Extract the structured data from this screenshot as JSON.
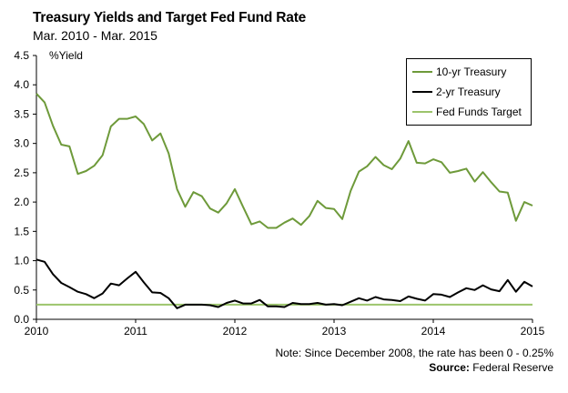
{
  "chart_data": {
    "type": "line",
    "title": "Treasury Yields and Target Fed Fund Rate",
    "subtitle": "Mar. 2010 - Mar. 2015",
    "ylabel": "%Yield",
    "xlabel": "",
    "ylim": [
      0,
      4.5
    ],
    "xlim": [
      2010,
      2015
    ],
    "yticks": [
      "0.0",
      "0.5",
      "1.0",
      "1.5",
      "2.0",
      "2.5",
      "3.0",
      "3.5",
      "4.0",
      "4.5"
    ],
    "xticks": [
      "2010",
      "2011",
      "2012",
      "2013",
      "2014",
      "2015"
    ],
    "legend_position": "top-right",
    "x": [
      2010.0,
      2010.083,
      2010.167,
      2010.25,
      2010.333,
      2010.417,
      2010.5,
      2010.583,
      2010.667,
      2010.75,
      2010.833,
      2010.917,
      2011.0,
      2011.083,
      2011.167,
      2011.25,
      2011.333,
      2011.417,
      2011.5,
      2011.583,
      2011.667,
      2011.75,
      2011.833,
      2011.917,
      2012.0,
      2012.083,
      2012.167,
      2012.25,
      2012.333,
      2012.417,
      2012.5,
      2012.583,
      2012.667,
      2012.75,
      2012.833,
      2012.917,
      2013.0,
      2013.083,
      2013.167,
      2013.25,
      2013.333,
      2013.417,
      2013.5,
      2013.583,
      2013.667,
      2013.75,
      2013.833,
      2013.917,
      2014.0,
      2014.083,
      2014.167,
      2014.25,
      2014.333,
      2014.417,
      2014.5,
      2014.583,
      2014.667,
      2014.75,
      2014.833,
      2014.917,
      2015.0
    ],
    "series": [
      {
        "name": "10-yr Treasury",
        "color": "#6e9a3a",
        "values": [
          3.85,
          3.7,
          3.3,
          2.98,
          2.95,
          2.48,
          2.53,
          2.62,
          2.8,
          3.29,
          3.42,
          3.42,
          3.46,
          3.33,
          3.05,
          3.17,
          2.83,
          2.22,
          1.92,
          2.17,
          2.1,
          1.89,
          1.82,
          1.98,
          2.22,
          1.92,
          1.62,
          1.67,
          1.56,
          1.56,
          1.65,
          1.72,
          1.61,
          1.76,
          2.02,
          1.9,
          1.88,
          1.71,
          2.19,
          2.52,
          2.61,
          2.77,
          2.63,
          2.56,
          2.74,
          3.04,
          2.67,
          2.66,
          2.73,
          2.68,
          2.5,
          2.53,
          2.57,
          2.35,
          2.51,
          2.34,
          2.18,
          2.16,
          1.68,
          2.0,
          1.94
        ]
      },
      {
        "name": "2-yr Treasury",
        "color": "#000000",
        "values": [
          1.02,
          0.98,
          0.77,
          0.62,
          0.55,
          0.47,
          0.43,
          0.36,
          0.44,
          0.61,
          0.58,
          0.7,
          0.81,
          0.63,
          0.46,
          0.45,
          0.36,
          0.19,
          0.25,
          0.25,
          0.25,
          0.24,
          0.21,
          0.28,
          0.32,
          0.27,
          0.27,
          0.33,
          0.22,
          0.22,
          0.21,
          0.28,
          0.26,
          0.26,
          0.28,
          0.25,
          0.26,
          0.24,
          0.3,
          0.36,
          0.32,
          0.38,
          0.34,
          0.33,
          0.31,
          0.39,
          0.35,
          0.32,
          0.43,
          0.42,
          0.38,
          0.46,
          0.53,
          0.5,
          0.58,
          0.51,
          0.48,
          0.67,
          0.47,
          0.64,
          0.56
        ]
      },
      {
        "name": "Fed Funds Target",
        "color": "#9cc46b",
        "values": [
          0.25,
          0.25,
          0.25,
          0.25,
          0.25,
          0.25,
          0.25,
          0.25,
          0.25,
          0.25,
          0.25,
          0.25,
          0.25,
          0.25,
          0.25,
          0.25,
          0.25,
          0.25,
          0.25,
          0.25,
          0.25,
          0.25,
          0.25,
          0.25,
          0.25,
          0.25,
          0.25,
          0.25,
          0.25,
          0.25,
          0.25,
          0.25,
          0.25,
          0.25,
          0.25,
          0.25,
          0.25,
          0.25,
          0.25,
          0.25,
          0.25,
          0.25,
          0.25,
          0.25,
          0.25,
          0.25,
          0.25,
          0.25,
          0.25,
          0.25,
          0.25,
          0.25,
          0.25,
          0.25,
          0.25,
          0.25,
          0.25,
          0.25,
          0.25,
          0.25,
          0.25
        ]
      }
    ]
  },
  "note": "Note: Since December 2008, the rate has been 0 - 0.25%",
  "source_label": "Source:",
  "source_value": "Federal Reserve"
}
